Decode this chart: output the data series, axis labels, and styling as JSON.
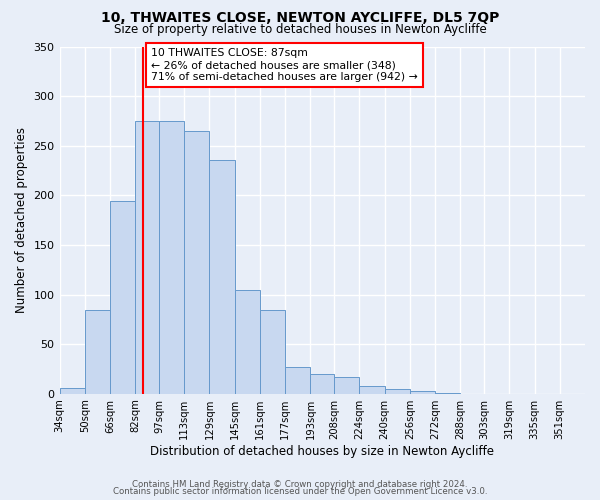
{
  "title1": "10, THWAITES CLOSE, NEWTON AYCLIFFE, DL5 7QP",
  "title2": "Size of property relative to detached houses in Newton Aycliffe",
  "xlabel": "Distribution of detached houses by size in Newton Aycliffe",
  "ylabel": "Number of detached properties",
  "footer1": "Contains HM Land Registry data © Crown copyright and database right 2024.",
  "footer2": "Contains public sector information licensed under the Open Government Licence v3.0.",
  "bin_labels": [
    "34sqm",
    "50sqm",
    "66sqm",
    "82sqm",
    "97sqm",
    "113sqm",
    "129sqm",
    "145sqm",
    "161sqm",
    "177sqm",
    "193sqm",
    "208sqm",
    "224sqm",
    "240sqm",
    "256sqm",
    "272sqm",
    "288sqm",
    "303sqm",
    "319sqm",
    "335sqm",
    "351sqm"
  ],
  "bar_values": [
    6,
    84,
    194,
    275,
    275,
    265,
    236,
    105,
    84,
    27,
    20,
    17,
    8,
    5,
    3,
    1,
    0,
    0,
    0,
    0
  ],
  "bar_color": "#c8d8f0",
  "bar_edge_color": "#6699cc",
  "vline_x": 87,
  "vline_color": "red",
  "annotation_title": "10 THWAITES CLOSE: 87sqm",
  "annotation_line1": "← 26% of detached houses are smaller (348)",
  "annotation_line2": "71% of semi-detached houses are larger (942) →",
  "annotation_box_color": "white",
  "annotation_box_edge": "red",
  "ylim": [
    0,
    350
  ],
  "bin_edges_sqm": [
    34,
    50,
    66,
    82,
    97,
    113,
    129,
    145,
    161,
    177,
    193,
    208,
    224,
    240,
    256,
    272,
    288,
    303,
    319,
    335,
    351,
    367
  ],
  "background_color": "#e8eef8"
}
